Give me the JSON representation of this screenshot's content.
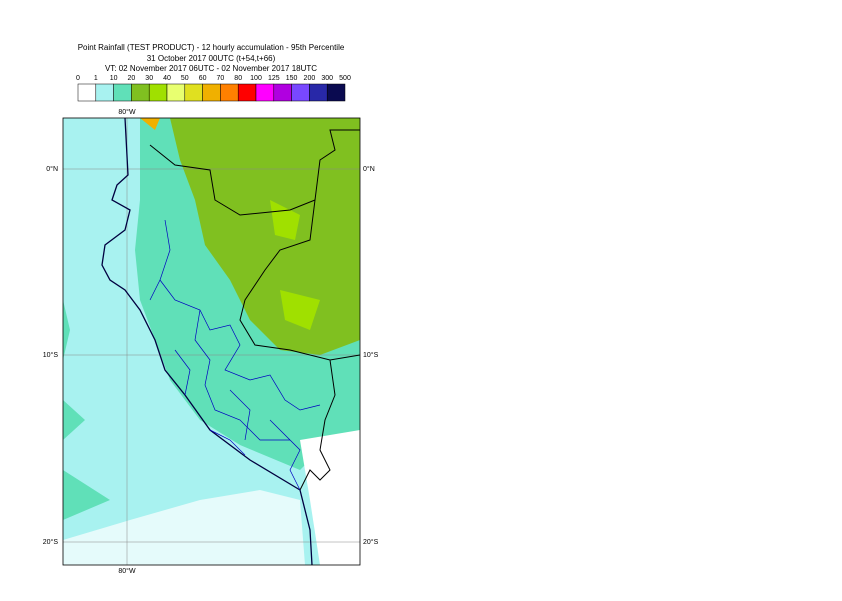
{
  "title": {
    "line1": "Point Rainfall (TEST PRODUCT) - 12 hourly accumulation - 95th Percentile",
    "line2": "31 October 2017 00UTC (t+54,t+66)",
    "line3": "VT: 02 November 2017 06UTC - 02 November 2017 18UTC"
  },
  "colorbar": {
    "levels": [
      0,
      1,
      10,
      20,
      30,
      40,
      50,
      60,
      70,
      80,
      100,
      125,
      150,
      200,
      300,
      500
    ],
    "colors": [
      "#ffffff",
      "#a8f2f0",
      "#60e0b8",
      "#80c020",
      "#a0e000",
      "#e8ff70",
      "#e0e020",
      "#f0b000",
      "#ff8000",
      "#ff0000",
      "#ff00ff",
      "#b000e0",
      "#7848ff",
      "#2828a8",
      "#0a0a50"
    ]
  },
  "map": {
    "lat_labels": [
      "0°N",
      "10°S",
      "20°S"
    ],
    "lon_labels": [
      "80°W"
    ]
  }
}
